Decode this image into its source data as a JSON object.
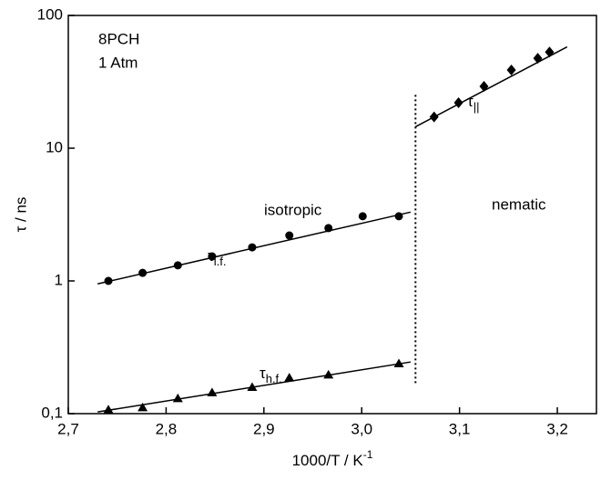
{
  "chart_data": {
    "type": "scatter",
    "x_label": {
      "main": "1000/T / K",
      "sup": "-1"
    },
    "y_label": "τ / ns",
    "annotations": [
      "8PCH",
      "1 Atm",
      "isotropic",
      "nematic"
    ],
    "log_y": true,
    "xlim": [
      2.7,
      3.24
    ],
    "ylim": [
      0.1,
      100
    ],
    "xticks": [
      {
        "value": 2.7,
        "label": "2,7"
      },
      {
        "value": 2.8,
        "label": "2,8"
      },
      {
        "value": 2.9,
        "label": "2,9"
      },
      {
        "value": 3.0,
        "label": "3,0"
      },
      {
        "value": 3.1,
        "label": "3,1"
      },
      {
        "value": 3.2,
        "label": "3,2"
      }
    ],
    "yticks": [
      {
        "value": 0.1,
        "label": "0,1"
      },
      1,
      10,
      100
    ],
    "series": [
      {
        "label": {
          "main": "τ",
          "sub": "l.f."
        },
        "marker": "circle",
        "color": "#000000",
        "x": [
          2.741,
          2.776,
          2.812,
          2.847,
          2.888,
          2.926,
          2.966,
          3.001,
          3.038
        ],
        "values": [
          1.0,
          1.15,
          1.31,
          1.53,
          1.79,
          2.2,
          2.5,
          3.07,
          3.07
        ]
      },
      {
        "label": {
          "main": "τ",
          "sub": "h.f."
        },
        "marker": "triangle",
        "color": "#000000",
        "x": [
          2.741,
          2.776,
          2.812,
          2.847,
          2.888,
          2.926,
          2.966,
          3.038
        ],
        "values": [
          0.107,
          0.111,
          0.13,
          0.144,
          0.158,
          0.186,
          0.196,
          0.238
        ]
      },
      {
        "label": {
          "main": "τ",
          "sub": "||"
        },
        "marker": "diamond",
        "color": "#000000",
        "x": [
          3.074,
          3.099,
          3.125,
          3.153,
          3.18,
          3.192
        ],
        "values": [
          17.2,
          22,
          29.2,
          38.8,
          47.6,
          53
        ]
      }
    ],
    "fits": [
      {
        "x": [
          2.73,
          3.05
        ],
        "values": [
          0.95,
          3.3
        ]
      },
      {
        "x": [
          2.73,
          3.05
        ],
        "values": [
          0.103,
          0.245
        ]
      },
      {
        "x": [
          3.055,
          3.21
        ],
        "values": [
          14.5,
          58
        ]
      }
    ],
    "boundary": {
      "x": [
        3.055,
        3.055
      ],
      "values": [
        0.17,
        26
      ]
    }
  }
}
